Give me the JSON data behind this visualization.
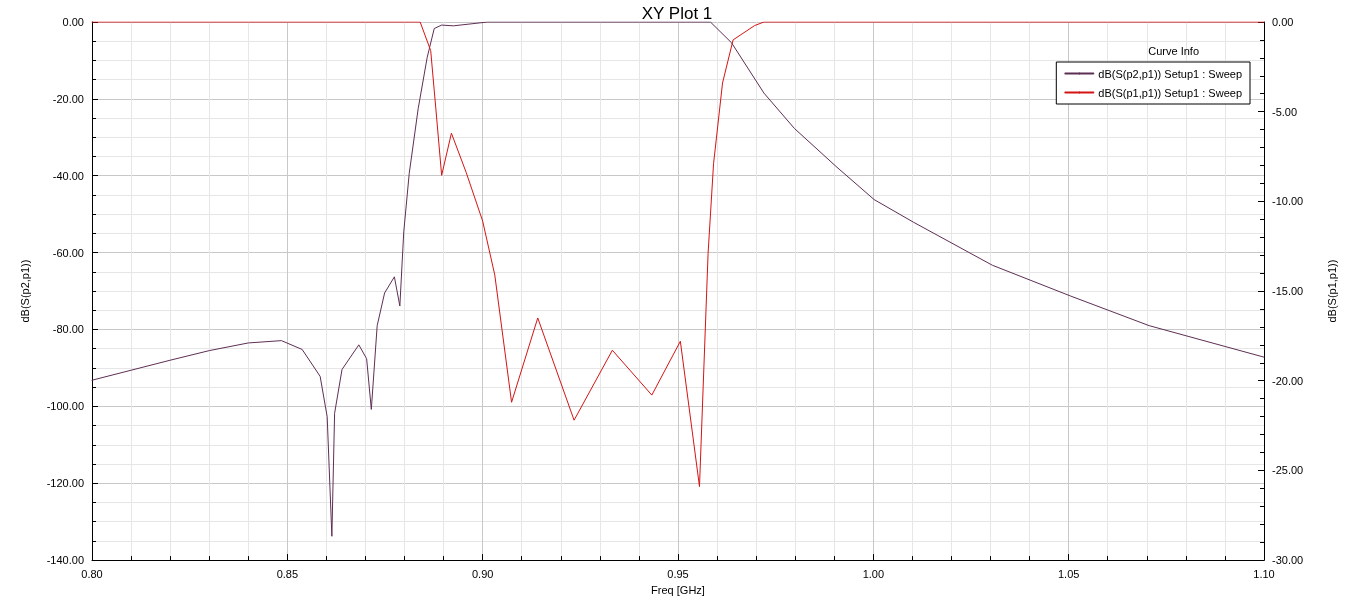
{
  "chart_data": {
    "type": "line",
    "title": "XY Plot 1",
    "xlabel": "Freq [GHz]",
    "ylabel": "dB(S(p2,p1))",
    "y2label": "dB(S(p1,p1))",
    "legend_title": "Curve Info",
    "legend": "top right",
    "grid": true,
    "marker": "none",
    "line_style": "solid",
    "xlim": [
      0.8,
      1.1
    ],
    "xticks": [
      {
        "value": 0.8,
        "label": "0.80"
      },
      {
        "value": 0.85,
        "label": "0.85"
      },
      {
        "value": 0.9,
        "label": "0.90"
      },
      {
        "value": 0.95,
        "label": "0.95"
      },
      {
        "value": 1.0,
        "label": "1.00"
      },
      {
        "value": 1.05,
        "label": "1.05"
      },
      {
        "value": 1.1,
        "label": "1.10"
      }
    ],
    "ylim": [
      -140,
      0
    ],
    "yticks": [
      {
        "value": -140,
        "label": "-140.00"
      },
      {
        "value": -120,
        "label": "-120.00"
      },
      {
        "value": -100,
        "label": "-100.00"
      },
      {
        "value": -80,
        "label": "-80.00"
      },
      {
        "value": -60,
        "label": "-60.00"
      },
      {
        "value": -40,
        "label": "-40.00"
      },
      {
        "value": -20,
        "label": "-20.00"
      },
      {
        "value": 0,
        "label": "0.00"
      }
    ],
    "y2lim": [
      -30,
      0
    ],
    "y2ticks": [
      {
        "value": -30,
        "label": "-30.00"
      },
      {
        "value": -25,
        "label": "-25.00"
      },
      {
        "value": -20,
        "label": "-20.00"
      },
      {
        "value": -15,
        "label": "-15.00"
      },
      {
        "value": -10,
        "label": "-10.00"
      },
      {
        "value": -5,
        "label": "-5.00"
      },
      {
        "value": 0,
        "label": "0.00"
      }
    ],
    "series": [
      {
        "name": "dB(S(p2,p1)) Setup1 : Sweep",
        "color": "#5e2f55",
        "x": [
          0.8,
          0.81,
          0.82,
          0.83,
          0.84,
          0.8485,
          0.8538,
          0.8584,
          0.8602,
          0.8614,
          0.8621,
          0.864,
          0.8683,
          0.8703,
          0.8715,
          0.873,
          0.8749,
          0.8774,
          0.8788,
          0.8798,
          0.8812,
          0.8835,
          0.8858,
          0.8876,
          0.8895,
          0.8925,
          0.9013,
          0.93,
          0.9583,
          0.9637,
          0.972,
          0.9798,
          0.9907,
          1.0002,
          1.0103,
          1.0305,
          1.0505,
          1.0706,
          1.1
        ],
        "values": [
          -93.2,
          -90.6,
          -88,
          -85.5,
          -83.5,
          -82.9,
          -85.2,
          -92.2,
          -102.7,
          -133.8,
          -101.8,
          -90.4,
          -84,
          -87.6,
          -100.8,
          -79,
          -70.5,
          -66.3,
          -73.9,
          -54.6,
          -39.4,
          -22.5,
          -9.2,
          -1.7,
          -0.8,
          -1,
          0,
          0,
          0,
          -5.4,
          -18.5,
          -27.7,
          -37.8,
          -46.2,
          -52.1,
          -63.3,
          -71.3,
          -79,
          -87.2
        ]
      },
      {
        "name": "dB(S(p1,p1)) Setup1 : Sweep",
        "color": "#d41414",
        "axis": "y2",
        "x": [
          0.8,
          0.884,
          0.8867,
          0.888,
          0.8895,
          0.892,
          0.8958,
          0.9,
          0.9031,
          0.9074,
          0.9141,
          0.9234,
          0.9332,
          0.9433,
          0.9506,
          0.9555,
          0.9577,
          0.9591,
          0.9614,
          0.9641,
          0.9696,
          0.972,
          1.1
        ],
        "values": [
          0,
          0,
          -1.6,
          -4.8,
          -8.55,
          -6.2,
          -8.4,
          -11.1,
          -14.1,
          -21.2,
          -16.5,
          -22.2,
          -18.3,
          -20.8,
          -17.8,
          -25.9,
          -12.9,
          -7.9,
          -3.4,
          -1,
          -0.2,
          0,
          0
        ]
      }
    ]
  }
}
